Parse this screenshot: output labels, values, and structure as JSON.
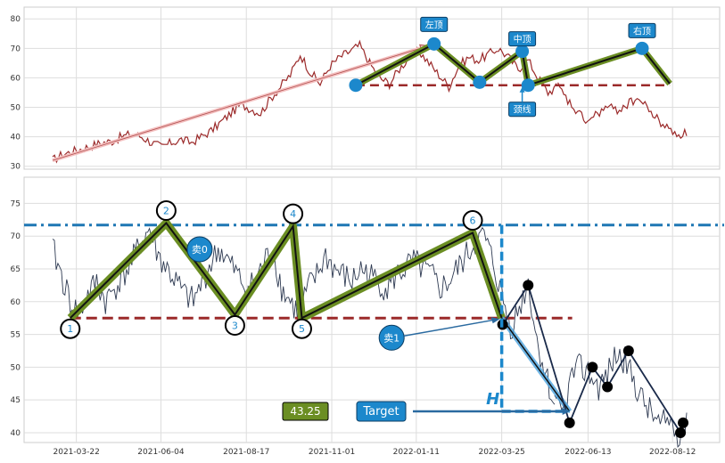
{
  "chart_data": [
    {
      "type": "line",
      "panel": "top",
      "title": "",
      "xlabel": "",
      "ylabel": "",
      "ylim": [
        29,
        84
      ],
      "yticks": [
        30,
        40,
        50,
        60,
        70,
        80
      ],
      "grid": true,
      "series": [
        {
          "x": [
            0,
            10,
            20,
            30,
            40,
            50,
            60,
            70,
            80,
            90,
            100,
            110,
            120,
            130,
            140,
            150,
            160,
            170,
            180,
            190,
            200,
            210,
            220,
            230,
            240,
            250,
            260,
            270,
            280,
            290,
            300,
            310,
            320,
            330,
            340,
            350,
            360,
            370,
            380,
            390,
            400,
            410,
            420,
            430,
            440,
            450,
            460,
            470,
            480,
            490,
            500,
            510
          ],
          "values": [
            32,
            34,
            35,
            36,
            37,
            38,
            38.5,
            40,
            41,
            40,
            38,
            36.5,
            38,
            39,
            38,
            40,
            42,
            45,
            48,
            51,
            49.5,
            48,
            53,
            57,
            61,
            68,
            62,
            58,
            64,
            67,
            69,
            71,
            65,
            60,
            58,
            63,
            67,
            69,
            65,
            61,
            57,
            64,
            67,
            66,
            68,
            70,
            67,
            63,
            66,
            60,
            55,
            57
          ]
        },
        {
          "x": [
            510,
            520,
            530,
            540,
            550,
            560,
            570,
            580,
            590,
            600,
            610,
            620,
            630,
            640
          ],
          "values": [
            57,
            52,
            48,
            45,
            48,
            50,
            49,
            51,
            53,
            50,
            46,
            43,
            41,
            41
          ]
        }
      ],
      "annotations": {
        "pattern_points": [
          {
            "x": 306,
            "y": 57.5
          },
          {
            "x": 385,
            "y": 71.5
          },
          {
            "x": 431,
            "y": 58.5
          },
          {
            "x": 474,
            "y": 69
          },
          {
            "x": 480,
            "y": 57.5
          },
          {
            "x": 595,
            "y": 70
          },
          {
            "x": 623,
            "y": 58
          }
        ],
        "neckline_y": 57.5,
        "arrow_from": {
          "x": 0,
          "y": 32
        },
        "arrow_to": {
          "x": 385,
          "y": 71.5
        },
        "labels": [
          {
            "text": "左顶",
            "x": 385,
            "y": 71.5
          },
          {
            "text": "中顶",
            "x": 474,
            "y": 69
          },
          {
            "text": "右顶",
            "x": 595,
            "y": 70
          },
          {
            "text": "颈线",
            "x": 474,
            "y": 57.5
          }
        ]
      }
    },
    {
      "type": "line",
      "panel": "bottom",
      "title": "",
      "xlabel": "",
      "ylabel": "",
      "ylim": [
        38.5,
        79
      ],
      "yticks": [
        40,
        45,
        50,
        55,
        60,
        65,
        70,
        75
      ],
      "xticks": [
        {
          "x": 27,
          "label": "2021-03-22"
        },
        {
          "x": 123,
          "label": "2021-06-04"
        },
        {
          "x": 220,
          "label": "2021-08-17"
        },
        {
          "x": 317,
          "label": "2021-11-01"
        },
        {
          "x": 413,
          "label": "2022-01-11"
        },
        {
          "x": 510,
          "label": "2022-03-25"
        },
        {
          "x": 608,
          "label": "2022-06-13"
        },
        {
          "x": 704,
          "label": "2022-08-12"
        }
      ],
      "grid": true,
      "series": [
        {
          "x": [
            0,
            10,
            20,
            30,
            40,
            50,
            60,
            70,
            80,
            90,
            100,
            110,
            120,
            130,
            140,
            150,
            160,
            170,
            180,
            190,
            200,
            210,
            220,
            230,
            240,
            250,
            260,
            270,
            280,
            290,
            300,
            310,
            320,
            330,
            340,
            350,
            360,
            370,
            380,
            390,
            400,
            410,
            420,
            430,
            440,
            450,
            460,
            470,
            480,
            490,
            500,
            510,
            520,
            530,
            540,
            550,
            560,
            570
          ],
          "values": [
            68,
            64,
            60,
            58,
            61,
            63,
            60,
            62,
            64,
            66,
            69,
            71,
            67,
            65,
            63,
            61,
            60,
            63,
            66,
            68,
            66,
            64,
            62,
            63,
            66,
            68,
            62,
            60,
            58,
            62,
            64,
            67,
            65,
            64,
            63,
            65,
            64,
            63,
            62,
            64,
            65,
            66,
            65,
            64,
            62,
            63,
            65,
            67,
            69,
            70,
            66,
            61,
            56,
            59,
            63,
            54,
            49,
            44
          ]
        },
        {
          "x": [
            570,
            580,
            590,
            600,
            610,
            620,
            630,
            640,
            650,
            660,
            670,
            680,
            690,
            700,
            710,
            720
          ],
          "values": [
            44,
            43,
            49,
            50,
            49,
            47,
            49,
            52,
            51,
            48,
            45,
            43,
            41,
            42,
            40,
            41
          ]
        }
      ],
      "annotations": {
        "resistance_y": 71.7,
        "neckline_y": 57.5,
        "pattern_points": [
          {
            "x": 20,
            "y": 57.5
          },
          {
            "x": 129,
            "y": 72
          },
          {
            "x": 207,
            "y": 58
          },
          {
            "x": 273,
            "y": 71.5
          },
          {
            "x": 283,
            "y": 57.5
          },
          {
            "x": 477,
            "y": 70.5
          },
          {
            "x": 510,
            "y": 57.5
          }
        ],
        "point_labels": [
          "1",
          "2",
          "3",
          "4",
          "5",
          "6"
        ],
        "black_points": [
          {
            "x": 511,
            "y": 56.5
          },
          {
            "x": 540,
            "y": 62.5
          },
          {
            "x": 587,
            "y": 41.5
          },
          {
            "x": 613,
            "y": 50
          },
          {
            "x": 630,
            "y": 47
          },
          {
            "x": 654,
            "y": 52.5
          },
          {
            "x": 713,
            "y": 40
          },
          {
            "x": 716,
            "y": 41.5
          }
        ],
        "sell_markers": [
          {
            "text": "卖0",
            "x": 167,
            "y": 68
          },
          {
            "text": "卖1",
            "x": 385,
            "y": 54.5
          }
        ],
        "target_label": "Target",
        "target_value": "43.25",
        "target_y": 43.25,
        "height_label": "H"
      }
    }
  ],
  "colors": {
    "price_top": "#9b2a2a",
    "price_bottom": "#2e3a52",
    "pattern_green": "#6b8e23",
    "neckline_red": "#9b2a2a",
    "resistance_blue": "#1f77b4",
    "marker_blue": "#1c88cc",
    "target_value_bg": "#6b8e23",
    "target_box_bg": "#1c88cc"
  }
}
